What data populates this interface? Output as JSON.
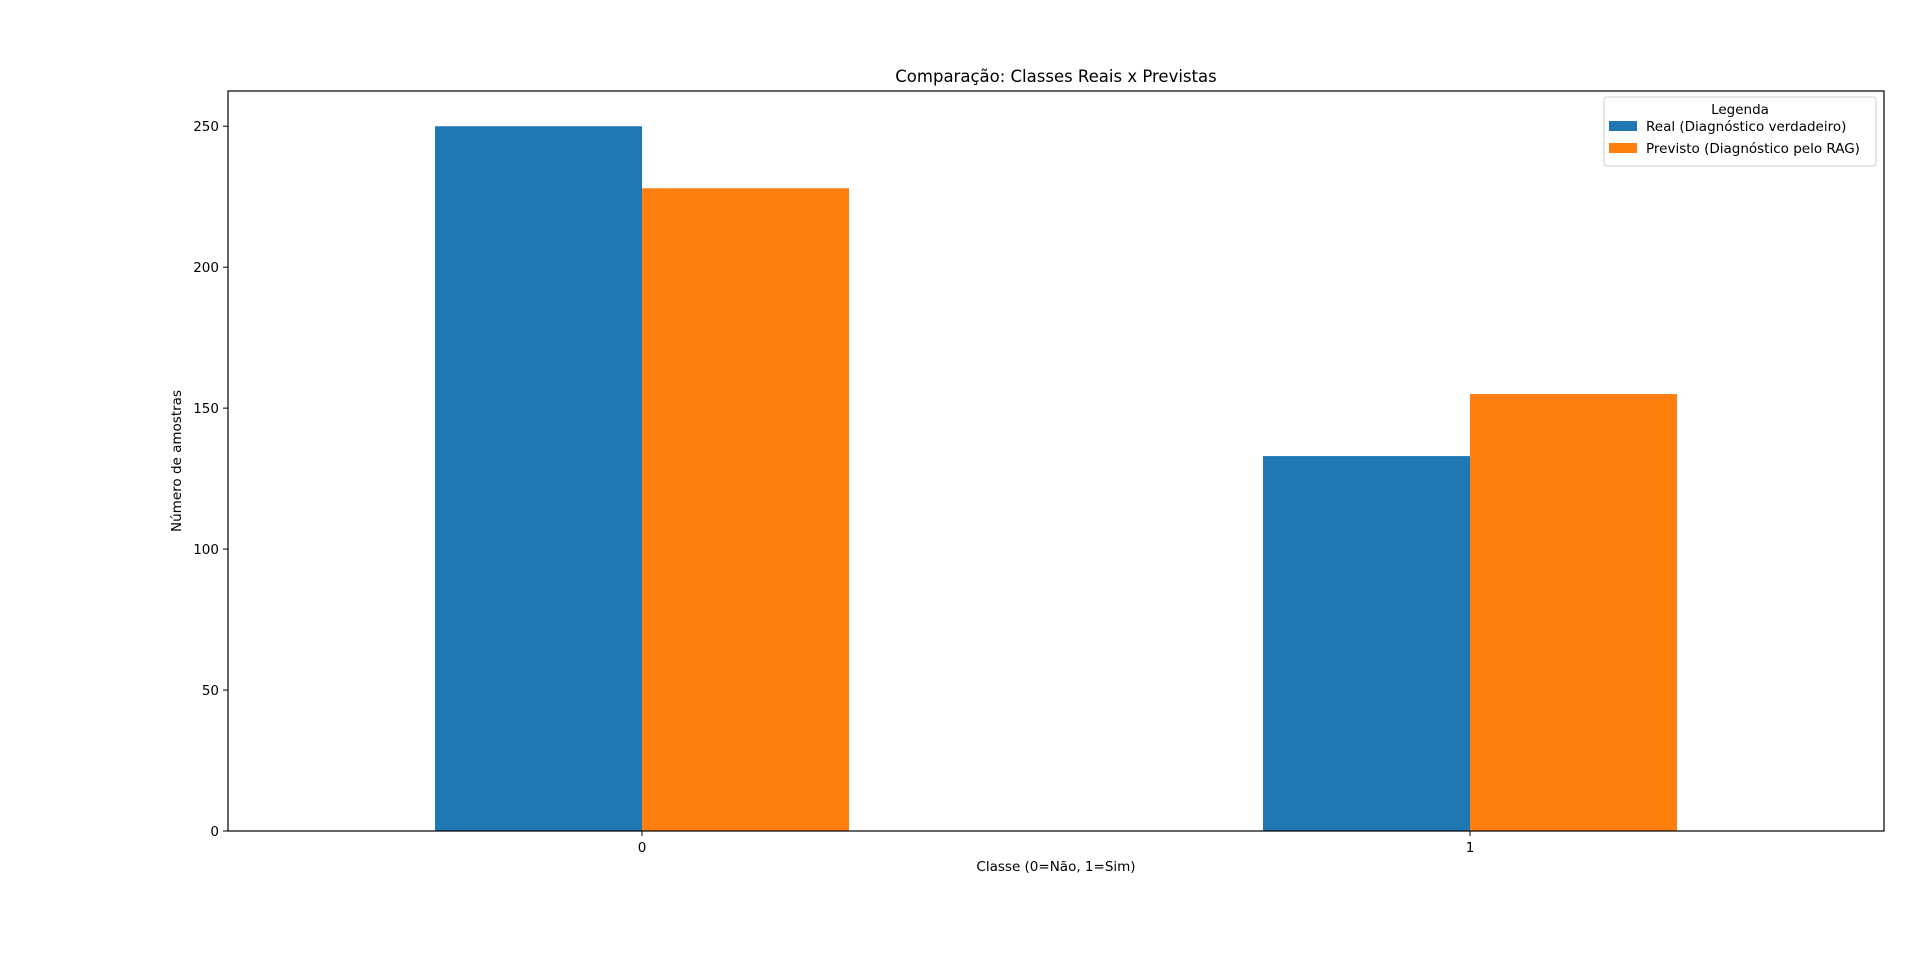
{
  "chart_data": {
    "type": "bar",
    "title": "Comparação: Classes Reais x Previstas",
    "xlabel": "Classe (0=Não, 1=Sim)",
    "ylabel": "Número de amostras",
    "categories": [
      "0",
      "1"
    ],
    "series": [
      {
        "name": "Real (Diagnóstico verdadeiro)",
        "values": [
          250,
          133
        ],
        "color": "#1f77b4"
      },
      {
        "name": "Previsto (Diagnóstico pelo RAG)",
        "values": [
          228,
          155
        ],
        "color": "#ff7f0e"
      }
    ],
    "ylim": [
      0,
      262.5
    ],
    "yticks": [
      0,
      50,
      100,
      150,
      200,
      250
    ],
    "grid": false,
    "legend": {
      "title": "Legenda",
      "placement": "top-right"
    }
  }
}
